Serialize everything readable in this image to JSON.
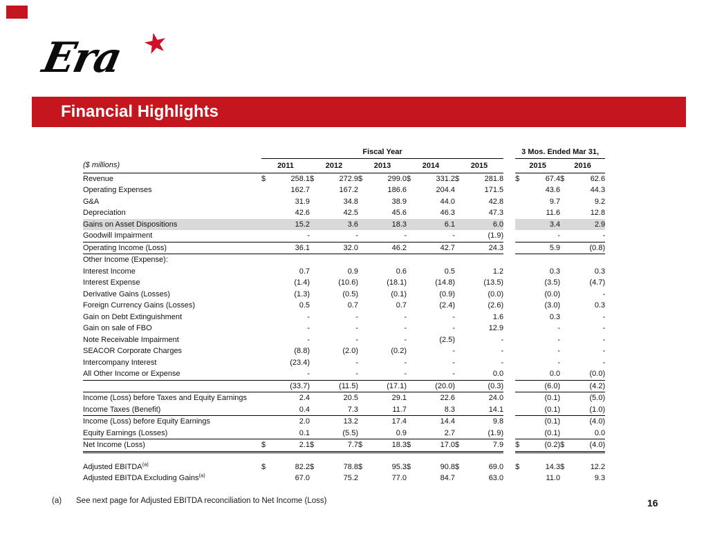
{
  "slide": {
    "logo_text": "Era",
    "logo_star": "★",
    "title": "Financial Highlights",
    "page_number": "16",
    "footnote_marker": "(a)",
    "footnote_text": "See next page for Adjusted EBITDA reconciliation to Net Income (Loss)"
  },
  "colors": {
    "accent_red": "#C5151E",
    "row_highlight": "#D9D9D9"
  },
  "table": {
    "group_headers": {
      "fiscal": "Fiscal Year",
      "three_mos": "3 Mos. Ended Mar 31,"
    },
    "unit_label": "($ millions)",
    "fiscal_years": [
      "2011",
      "2012",
      "2013",
      "2014",
      "2015"
    ],
    "three_mos_years": [
      "2015",
      "2016"
    ],
    "rows": [
      {
        "name": "revenue",
        "label": "Revenue",
        "dollar": true,
        "fiscal": [
          "258.1",
          "272.9",
          "299.0",
          "331.2",
          "281.8"
        ],
        "three_mo": [
          "67.4",
          "62.6"
        ]
      },
      {
        "name": "operating-expenses",
        "label": "Operating Expenses",
        "fiscal": [
          "162.7",
          "167.2",
          "186.6",
          "204.4",
          "171.5"
        ],
        "three_mo": [
          "43.6",
          "44.3"
        ]
      },
      {
        "name": "ga",
        "label": "G&A",
        "fiscal": [
          "31.9",
          "34.8",
          "38.9",
          "44.0",
          "42.8"
        ],
        "three_mo": [
          "9.7",
          "9.2"
        ]
      },
      {
        "name": "depreciation",
        "label": "Depreciation",
        "fiscal": [
          "42.6",
          "42.5",
          "45.6",
          "46.3",
          "47.3"
        ],
        "three_mo": [
          "11.6",
          "12.8"
        ]
      },
      {
        "name": "gains-on-asset-dispositions",
        "label": "Gains on Asset Dispositions",
        "highlight": true,
        "fiscal": [
          "15.2",
          "3.6",
          "18.3",
          "6.1",
          "6.0"
        ],
        "three_mo": [
          "3.4",
          "2.9"
        ]
      },
      {
        "name": "goodwill-impairment",
        "label": "Goodwill Impairment",
        "fiscal": [
          "-",
          "-",
          "-",
          "-",
          "(1.9)"
        ],
        "three_mo": [
          "-",
          "-"
        ]
      },
      {
        "name": "operating-income",
        "label": "Operating Income (Loss)",
        "line_above": true,
        "line_below": true,
        "fiscal": [
          "36.1",
          "32.0",
          "46.2",
          "42.7",
          "24.3"
        ],
        "three_mo": [
          "5.9",
          "(0.8)"
        ]
      },
      {
        "name": "other-income-section",
        "label": "Other Income (Expense):",
        "fiscal": [
          "",
          "",
          "",
          "",
          ""
        ],
        "three_mo": [
          "",
          ""
        ]
      },
      {
        "name": "interest-income",
        "label": "Interest Income",
        "fiscal": [
          "0.7",
          "0.9",
          "0.6",
          "0.5",
          "1.2"
        ],
        "three_mo": [
          "0.3",
          "0.3"
        ]
      },
      {
        "name": "interest-expense",
        "label": "Interest Expense",
        "fiscal": [
          "(1.4)",
          "(10.6)",
          "(18.1)",
          "(14.8)",
          "(13.5)"
        ],
        "three_mo": [
          "(3.5)",
          "(4.7)"
        ]
      },
      {
        "name": "derivative-gains",
        "label": "Derivative Gains (Losses)",
        "fiscal": [
          "(1.3)",
          "(0.5)",
          "(0.1)",
          "(0.9)",
          "(0.0)"
        ],
        "three_mo": [
          "(0.0)",
          "-"
        ]
      },
      {
        "name": "foreign-currency-gains",
        "label": "Foreign Currency Gains (Losses)",
        "fiscal": [
          "0.5",
          "0.7",
          "0.7",
          "(2.4)",
          "(2.6)"
        ],
        "three_mo": [
          "(3.0)",
          "0.3"
        ]
      },
      {
        "name": "gain-on-debt-extinguishment",
        "label": "Gain on Debt Extinguishment",
        "fiscal": [
          "-",
          "-",
          "-",
          "-",
          "1.6"
        ],
        "three_mo": [
          "0.3",
          "-"
        ]
      },
      {
        "name": "gain-on-sale-of-fbo",
        "label": "Gain on sale of FBO",
        "fiscal": [
          "-",
          "-",
          "-",
          "-",
          "12.9"
        ],
        "three_mo": [
          "-",
          "-"
        ]
      },
      {
        "name": "note-receivable-impairment",
        "label": "Note Receivable Impairment",
        "fiscal": [
          "-",
          "-",
          "-",
          "(2.5)",
          "-"
        ],
        "three_mo": [
          "-",
          "-"
        ]
      },
      {
        "name": "seacor-corporate-charges",
        "label": "SEACOR Corporate Charges",
        "fiscal": [
          "(8.8)",
          "(2.0)",
          "(0.2)",
          "-",
          "-"
        ],
        "three_mo": [
          "-",
          "-"
        ]
      },
      {
        "name": "intercompany-interest",
        "label": "Intercompany Interest",
        "fiscal": [
          "(23.4)",
          "-",
          "-",
          "-",
          "-"
        ],
        "three_mo": [
          "-",
          "-"
        ]
      },
      {
        "name": "all-other-income-or-expense",
        "label": "All Other Income or Expense",
        "fiscal": [
          "-",
          "-",
          "-",
          "-",
          "0.0"
        ],
        "three_mo": [
          "0.0",
          "(0.0)"
        ]
      },
      {
        "name": "other-income-total",
        "label": "",
        "line_above": true,
        "line_below": true,
        "fiscal": [
          "(33.7)",
          "(11.5)",
          "(17.1)",
          "(20.0)",
          "(0.3)"
        ],
        "three_mo": [
          "(6.0)",
          "(4.2)"
        ]
      },
      {
        "name": "income-before-taxes-and-equity",
        "label": "Income (Loss) before Taxes and Equity Earnings",
        "fiscal": [
          "2.4",
          "20.5",
          "29.1",
          "22.6",
          "24.0"
        ],
        "three_mo": [
          "(0.1)",
          "(5.0)"
        ]
      },
      {
        "name": "income-taxes",
        "label": "Income Taxes (Benefit)",
        "fiscal": [
          "0.4",
          "7.3",
          "11.7",
          "8.3",
          "14.1"
        ],
        "three_mo": [
          "(0.1)",
          "(1.0)"
        ]
      },
      {
        "name": "income-before-equity-earnings",
        "label": "Income (Loss) before Equity Earnings",
        "line_above": true,
        "fiscal": [
          "2.0",
          "13.2",
          "17.4",
          "14.4",
          "9.8"
        ],
        "three_mo": [
          "(0.1)",
          "(4.0)"
        ]
      },
      {
        "name": "equity-earnings",
        "label": "Equity Earnings (Losses)",
        "fiscal": [
          "0.1",
          "(5.5)",
          "0.9",
          "2.7",
          "(1.9)"
        ],
        "three_mo": [
          "(0.1)",
          "0.0"
        ]
      },
      {
        "name": "net-income",
        "label": "Net Income (Loss)",
        "dollar": true,
        "line_above": true,
        "double_below": true,
        "fiscal": [
          "2.1",
          "7.7",
          "18.3",
          "17.0",
          "7.9"
        ],
        "three_mo": [
          "(0.2)",
          "(4.0)"
        ]
      },
      {
        "name": "spacer",
        "spacer": true
      },
      {
        "name": "adjusted-ebitda",
        "label": "Adjusted EBITDA",
        "sup": "(a)",
        "dollar": true,
        "fiscal": [
          "82.2",
          "78.8",
          "95.3",
          "90.8",
          "69.0"
        ],
        "three_mo": [
          "14.3",
          "12.2"
        ]
      },
      {
        "name": "adjusted-ebitda-excluding-gains",
        "label": "Adjusted EBITDA Excluding Gains",
        "sup": "(a)",
        "fiscal": [
          "67.0",
          "75.2",
          "77.0",
          "84.7",
          "63.0"
        ],
        "three_mo": [
          "11.0",
          "9.3"
        ]
      }
    ]
  }
}
